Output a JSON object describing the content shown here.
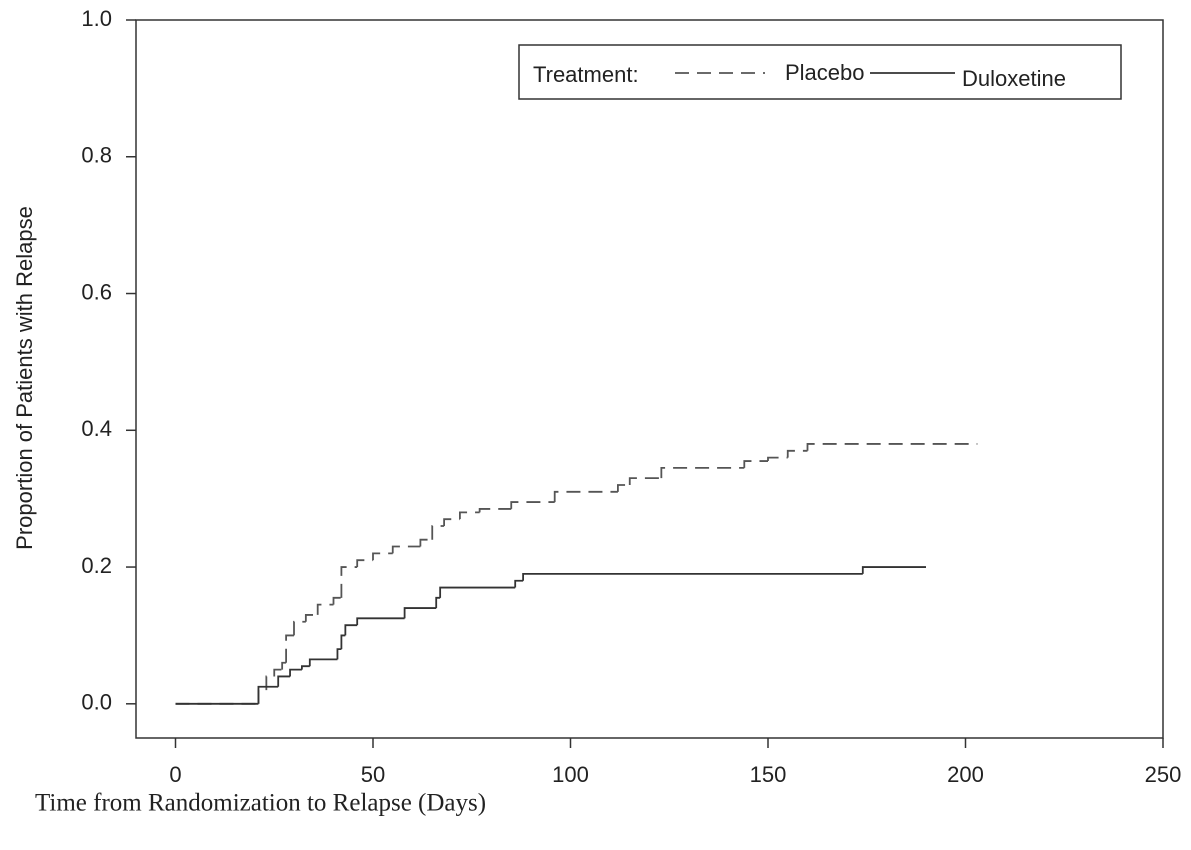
{
  "chart_data": {
    "type": "line",
    "step": true,
    "y_label": "Proportion of Patients with Relapse",
    "x_label": "Time from Randomization to Relapse (Days)",
    "legend_title": "Treatment:",
    "legend_position": "top-right",
    "xlim": [
      -10,
      250
    ],
    "xticks": [
      0,
      50,
      100,
      150,
      200,
      250
    ],
    "ylim": [
      -0.05,
      1.0
    ],
    "yticks": [
      {
        "value": 0,
        "label": "0.0"
      },
      0.2,
      0.4,
      0.6,
      0.8,
      {
        "value": 1,
        "label": "1.0"
      }
    ],
    "grid": false,
    "series": [
      {
        "name": "Placebo",
        "color": "#555555",
        "dash": true,
        "x": [
          0,
          21,
          23,
          25,
          27,
          28,
          30,
          33,
          36,
          40,
          42,
          46,
          50,
          55,
          62,
          65,
          68,
          72,
          77,
          85,
          96,
          112,
          115,
          123,
          144,
          150,
          155,
          160,
          203
        ],
        "values": [
          0,
          0.02,
          0.04,
          0.05,
          0.06,
          0.1,
          0.12,
          0.13,
          0.145,
          0.155,
          0.2,
          0.21,
          0.22,
          0.23,
          0.24,
          0.26,
          0.27,
          0.28,
          0.285,
          0.295,
          0.31,
          0.32,
          0.33,
          0.345,
          0.355,
          0.36,
          0.37,
          0.38,
          0.38
        ]
      },
      {
        "name": "Duloxetine",
        "color": "#333333",
        "dash": false,
        "x": [
          0,
          21,
          26,
          29,
          32,
          34,
          41,
          42,
          43,
          46,
          58,
          66,
          67,
          86,
          88,
          174,
          190
        ],
        "values": [
          0,
          0.025,
          0.04,
          0.05,
          0.055,
          0.065,
          0.08,
          0.1,
          0.115,
          0.125,
          0.14,
          0.155,
          0.17,
          0.18,
          0.19,
          0.2,
          0.2
        ]
      }
    ]
  }
}
